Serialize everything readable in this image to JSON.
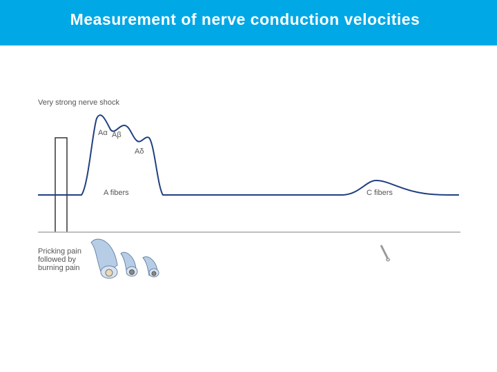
{
  "header": {
    "title": "Measurement of nerve conduction velocities"
  },
  "diagram": {
    "stimulus_label": "Very strong nerve shock",
    "peaks": [
      "Aα",
      "Aβ",
      "Aδ"
    ],
    "group_labels": [
      "A fibers",
      "C fibers"
    ],
    "sensation_label": [
      "Pricking pain",
      "followed by",
      "burning pain"
    ]
  }
}
